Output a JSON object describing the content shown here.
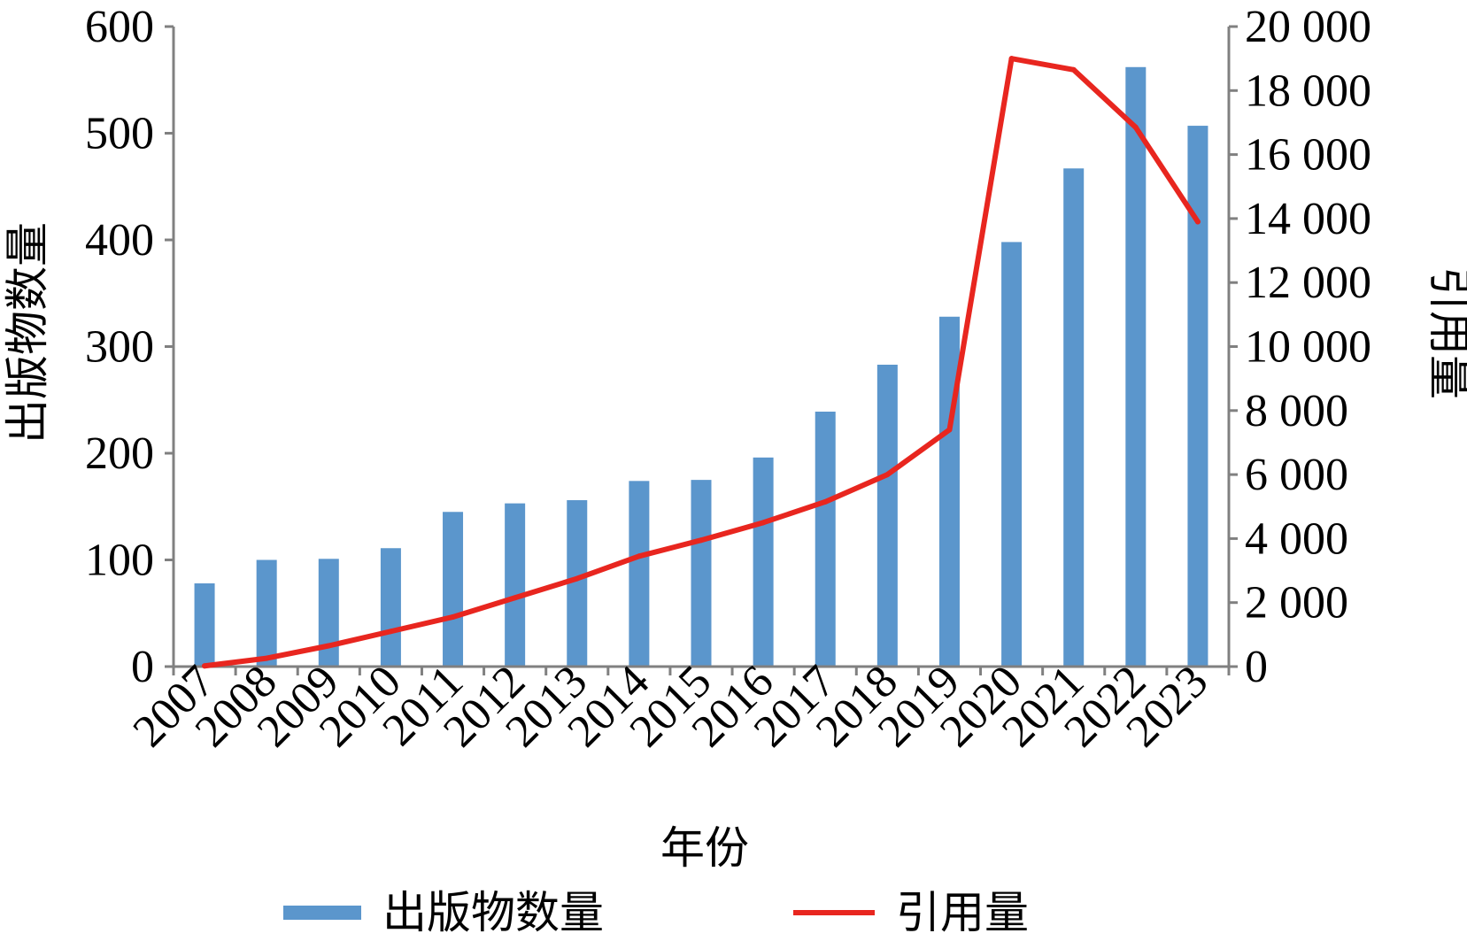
{
  "chart_data": {
    "type": "bar",
    "categories": [
      "2007",
      "2008",
      "2009",
      "2010",
      "2011",
      "2012",
      "2013",
      "2014",
      "2015",
      "2016",
      "2017",
      "2018",
      "2019",
      "2020",
      "2021",
      "2022",
      "2023"
    ],
    "series": [
      {
        "name": "出版物数量",
        "type": "bar",
        "axis": "left",
        "color": "#5b96cc",
        "values": [
          78,
          100,
          101,
          111,
          145,
          153,
          156,
          174,
          175,
          196,
          239,
          283,
          328,
          398,
          467,
          562,
          507
        ]
      },
      {
        "name": "引用量",
        "type": "line",
        "axis": "right",
        "color": "#e8261f",
        "values": [
          20,
          260,
          650,
          1100,
          1550,
          2150,
          2750,
          3450,
          3950,
          4500,
          5150,
          6000,
          7400,
          19000,
          18650,
          16850,
          13900
        ]
      }
    ],
    "xlabel": "年份",
    "ylabel": "出版物数量",
    "y2label": "引用量",
    "ylim": [
      0,
      600
    ],
    "y2lim": [
      0,
      20000
    ],
    "yticks": [
      "0",
      "100",
      "200",
      "300",
      "400",
      "500",
      "600"
    ],
    "y2ticks": [
      "0",
      "2 000",
      "4 000",
      "6 000",
      "8 000",
      "10 000",
      "12 000",
      "14 000",
      "16 000",
      "18 000",
      "20 000"
    ],
    "legend": {
      "position": "bottom",
      "items": [
        "出版物数量",
        "引用量"
      ]
    },
    "grid": false
  }
}
